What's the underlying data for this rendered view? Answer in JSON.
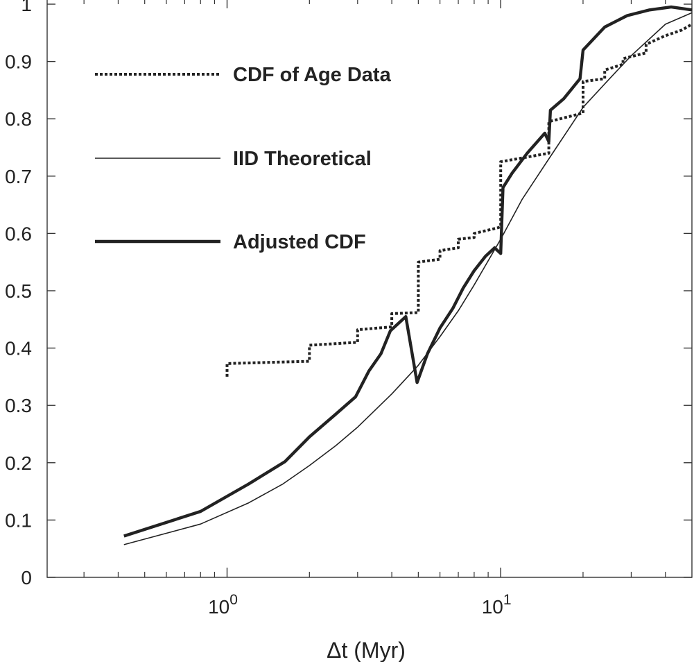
{
  "chart_data": {
    "type": "line",
    "title": "",
    "xlabel": "Δt (Myr)",
    "ylabel": "",
    "xscale": "log",
    "xlim": [
      0.22,
      50
    ],
    "ylim": [
      0,
      1
    ],
    "grid": false,
    "legend_position": "top-left",
    "y_ticks": [
      0,
      0.1,
      0.2,
      0.3,
      0.4,
      0.5,
      0.6,
      0.7,
      0.8,
      0.9,
      1
    ],
    "y_tick_labels": [
      "0",
      "0.1",
      "0.2",
      "0.3",
      "0.4",
      "0.5",
      "0.6",
      "0.7",
      "0.8",
      "0.9",
      "1"
    ],
    "x_major_ticks": [
      {
        "value": 1,
        "base": "10",
        "exp": "0"
      },
      {
        "value": 10,
        "base": "10",
        "exp": "1"
      }
    ],
    "x_minor_ticks": [
      0.3,
      0.4,
      0.5,
      0.6,
      0.7,
      0.8,
      0.9,
      2,
      3,
      4,
      5,
      6,
      7,
      8,
      9,
      20,
      30,
      40
    ],
    "series": [
      {
        "name": "CDF of Age Data",
        "style": "dotted",
        "color": "#222222",
        "x": [
          1.0,
          1.0,
          2.0,
          2.0,
          3.0,
          3.0,
          4.0,
          4.0,
          5.0,
          5.0,
          6.0,
          6.0,
          7.0,
          7.0,
          8.0,
          8.0,
          9.8,
          10.0,
          10.0,
          15.0,
          15.0,
          20.0,
          20.0,
          24.0,
          24.0,
          28.0,
          28.0,
          34.0,
          34.0,
          40.0,
          46.0,
          50.0
        ],
        "y": [
          0.35,
          0.373,
          0.377,
          0.405,
          0.41,
          0.432,
          0.437,
          0.46,
          0.462,
          0.55,
          0.555,
          0.57,
          0.575,
          0.59,
          0.593,
          0.6,
          0.61,
          0.612,
          0.725,
          0.74,
          0.795,
          0.81,
          0.865,
          0.87,
          0.885,
          0.895,
          0.905,
          0.915,
          0.93,
          0.945,
          0.955,
          0.965
        ]
      },
      {
        "name": "IID Theoretical",
        "style": "solid-thin",
        "color": "#222222",
        "x": [
          0.42,
          0.8,
          1.2,
          1.6,
          2.0,
          2.5,
          3.0,
          4.0,
          5.0,
          6.0,
          7.0,
          8.0,
          10.0,
          12.0,
          15.0,
          20.0,
          25.0,
          30.0,
          40.0,
          50.0
        ],
        "y": [
          0.057,
          0.093,
          0.13,
          0.163,
          0.195,
          0.23,
          0.262,
          0.32,
          0.37,
          0.42,
          0.465,
          0.51,
          0.59,
          0.66,
          0.73,
          0.82,
          0.87,
          0.91,
          0.965,
          0.985
        ]
      },
      {
        "name": "Adjusted CDF",
        "style": "solid-thick",
        "color": "#222222",
        "x": [
          0.42,
          0.8,
          1.2,
          1.63,
          2.0,
          2.5,
          2.95,
          3.3,
          3.65,
          3.95,
          4.5,
          4.95,
          5.4,
          6.0,
          6.7,
          7.3,
          8.0,
          8.8,
          9.5,
          10.0,
          10.2,
          11.0,
          12.5,
          14.5,
          15.0,
          15.2,
          17.0,
          19.5,
          20.0,
          24.0,
          29.0,
          35.0,
          42.0,
          50.0
        ],
        "y": [
          0.072,
          0.115,
          0.163,
          0.202,
          0.245,
          0.285,
          0.315,
          0.36,
          0.39,
          0.43,
          0.455,
          0.34,
          0.39,
          0.435,
          0.47,
          0.505,
          0.535,
          0.56,
          0.575,
          0.565,
          0.68,
          0.705,
          0.74,
          0.775,
          0.76,
          0.815,
          0.835,
          0.87,
          0.92,
          0.96,
          0.98,
          0.99,
          0.995,
          0.99
        ]
      }
    ]
  }
}
